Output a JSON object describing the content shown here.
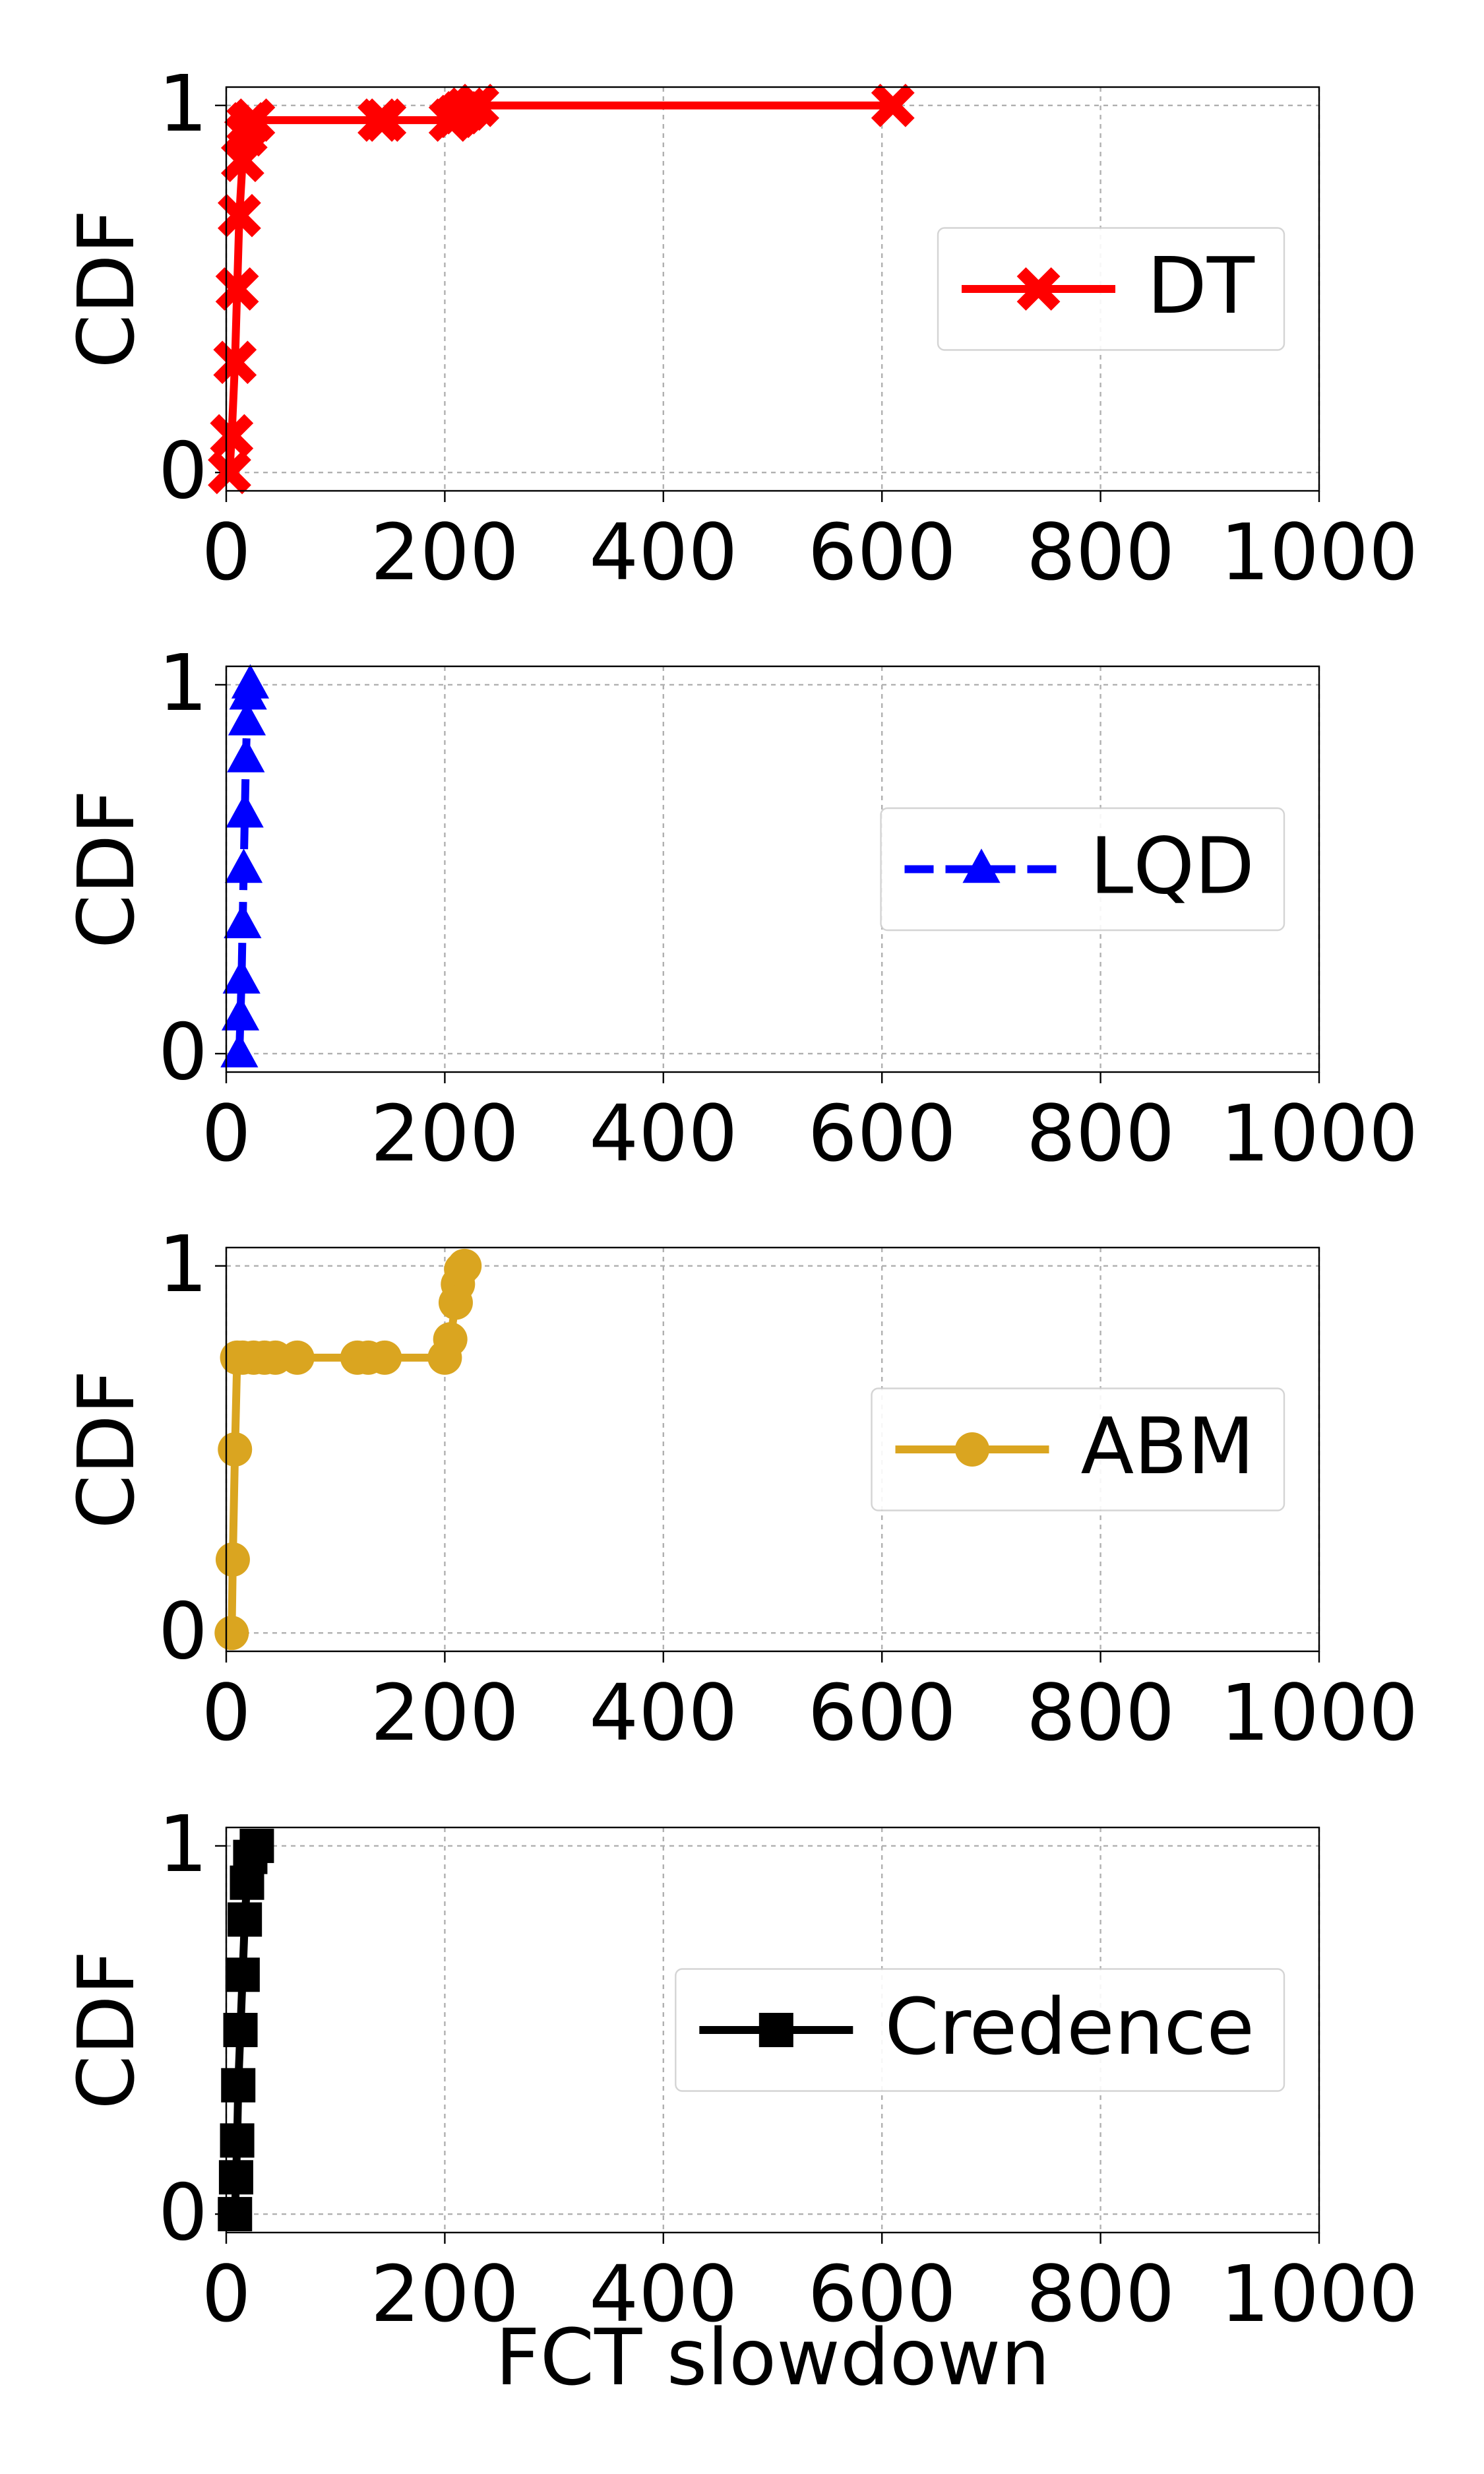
{
  "chart_data": [
    {
      "type": "line",
      "ylabel": "CDF",
      "xlim": [
        0,
        1000
      ],
      "xticks": [
        0,
        200,
        400,
        600,
        800,
        1000
      ],
      "ylim": [
        -0.05,
        1.05
      ],
      "yticks": [
        0,
        1
      ],
      "grid": true,
      "legend": "center right",
      "series": [
        {
          "name": "DT",
          "color": "#ff0000",
          "marker": "x",
          "linestyle": "solid",
          "x": [
            3,
            5,
            8,
            10,
            12,
            15,
            18,
            20,
            25,
            140,
            145,
            205,
            210,
            215,
            220,
            230,
            610
          ],
          "values": [
            0,
            0.1,
            0.3,
            0.5,
            0.7,
            0.85,
            0.92,
            0.95,
            0.96,
            0.96,
            0.96,
            0.96,
            0.97,
            0.98,
            0.99,
            1.0,
            1.0
          ]
        }
      ]
    },
    {
      "type": "line",
      "ylabel": "CDF",
      "xlim": [
        0,
        1000
      ],
      "xticks": [
        0,
        200,
        400,
        600,
        800,
        1000
      ],
      "ylim": [
        -0.05,
        1.05
      ],
      "yticks": [
        0,
        1
      ],
      "grid": true,
      "legend": "center right",
      "series": [
        {
          "name": "LQD",
          "color": "#0000ff",
          "marker": "triangle",
          "linestyle": "dashed",
          "x": [
            12,
            13,
            14,
            15,
            16,
            17,
            18,
            19,
            20,
            22
          ],
          "values": [
            0,
            0.1,
            0.2,
            0.35,
            0.5,
            0.65,
            0.8,
            0.9,
            0.97,
            1.0
          ]
        }
      ]
    },
    {
      "type": "line",
      "ylabel": "CDF",
      "xlim": [
        0,
        1000
      ],
      "xticks": [
        0,
        200,
        400,
        600,
        800,
        1000
      ],
      "ylim": [
        -0.05,
        1.05
      ],
      "yticks": [
        0,
        1
      ],
      "grid": true,
      "legend": "center right",
      "series": [
        {
          "name": "ABM",
          "color": "#daa520",
          "marker": "circle",
          "linestyle": "solid",
          "x": [
            5,
            6,
            8,
            10,
            15,
            25,
            35,
            45,
            65,
            120,
            130,
            145,
            200,
            205,
            210,
            212,
            215,
            218
          ],
          "values": [
            0,
            0.2,
            0.5,
            0.75,
            0.75,
            0.75,
            0.75,
            0.75,
            0.75,
            0.75,
            0.75,
            0.75,
            0.75,
            0.8,
            0.9,
            0.95,
            0.99,
            1.0
          ]
        }
      ]
    },
    {
      "type": "line",
      "ylabel": "CDF",
      "xlabel": "FCT slowdown",
      "xlim": [
        0,
        1000
      ],
      "xticks": [
        0,
        200,
        400,
        600,
        800,
        1000
      ],
      "ylim": [
        -0.05,
        1.05
      ],
      "yticks": [
        0,
        1
      ],
      "grid": true,
      "legend": "center right",
      "series": [
        {
          "name": "Credence",
          "color": "#000000",
          "marker": "square",
          "linestyle": "solid",
          "x": [
            8,
            9,
            10,
            11,
            13,
            15,
            17,
            19,
            22,
            28
          ],
          "values": [
            0,
            0.1,
            0.2,
            0.35,
            0.5,
            0.65,
            0.8,
            0.9,
            0.97,
            1.0
          ]
        }
      ]
    }
  ]
}
